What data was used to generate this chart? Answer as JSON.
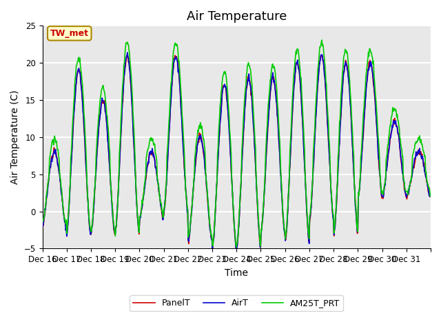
{
  "title": "Air Temperature",
  "ylabel": "Air Temperature (C)",
  "xlabel": "Time",
  "annotation": "TW_met",
  "ylim": [
    -5,
    25
  ],
  "background_color": "#e8e8e8",
  "grid_color": "#ffffff",
  "series": {
    "PanelT": {
      "color": "#cc0000",
      "lw": 1.2
    },
    "AirT": {
      "color": "#0000cc",
      "lw": 1.2
    },
    "AM25T_PRT": {
      "color": "#00cc00",
      "lw": 1.2
    }
  },
  "tick_labels": [
    "Dec 16",
    "Dec 17",
    "Dec 18",
    "Dec 19",
    "Dec 20",
    "Dec 21",
    "Dec 22",
    "Dec 23",
    "Dec 24",
    "Dec 25",
    "Dec 26",
    "Dec 27",
    "Dec 28",
    "Dec 29",
    "Dec 30",
    "Dec 31"
  ],
  "title_fontsize": 13,
  "axis_fontsize": 10,
  "tick_fontsize": 8.5
}
